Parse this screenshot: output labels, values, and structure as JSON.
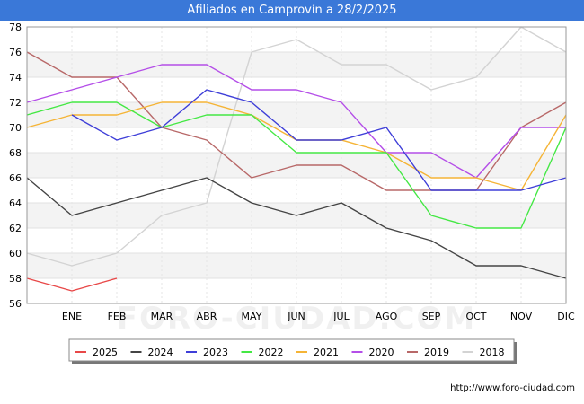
{
  "chart_data": {
    "type": "line",
    "title": "Afiliados en Camprovín a 28/2/2025",
    "xlabel": "",
    "ylabel": "",
    "categories": [
      "",
      "ENE",
      "FEB",
      "MAR",
      "ABR",
      "MAY",
      "JUN",
      "JUL",
      "AGO",
      "SEP",
      "OCT",
      "NOV",
      "DIC"
    ],
    "ylim": [
      56,
      78
    ],
    "yticks": [
      56,
      58,
      60,
      62,
      64,
      66,
      68,
      70,
      72,
      74,
      76,
      78
    ],
    "grid": "horizontal bands",
    "legend_position": "bottom",
    "series": [
      {
        "name": "2018",
        "color": "#d3d3d3",
        "values": [
          60,
          59,
          60,
          63,
          64,
          76,
          77,
          75,
          75,
          73,
          74,
          78,
          76
        ]
      },
      {
        "name": "2019",
        "color": "#b86868",
        "values": [
          76,
          74,
          74,
          70,
          69,
          66,
          67,
          67,
          65,
          65,
          65,
          70,
          72
        ]
      },
      {
        "name": "2020",
        "color": "#b44ee8",
        "values": [
          72,
          73,
          74,
          75,
          75,
          73,
          73,
          72,
          68,
          68,
          66,
          70,
          70
        ]
      },
      {
        "name": "2021",
        "color": "#f5b436",
        "values": [
          70,
          71,
          71,
          72,
          72,
          71,
          69,
          69,
          68,
          66,
          66,
          65,
          71
        ]
      },
      {
        "name": "2022",
        "color": "#44e844",
        "values": [
          71,
          72,
          72,
          70,
          71,
          71,
          68,
          68,
          68,
          63,
          62,
          62,
          70
        ]
      },
      {
        "name": "2023",
        "color": "#3e3ed8",
        "values": [
          null,
          71,
          69,
          70,
          73,
          72,
          69,
          69,
          70,
          65,
          65,
          65,
          66
        ]
      },
      {
        "name": "2024",
        "color": "#444444",
        "values": [
          66,
          63,
          64,
          65,
          66,
          64,
          63,
          64,
          62,
          61,
          59,
          59,
          58
        ]
      },
      {
        "name": "2025",
        "color": "#e84848",
        "values": [
          58,
          57,
          58,
          null,
          null,
          null,
          null,
          null,
          null,
          null,
          null,
          null,
          null
        ]
      }
    ],
    "legend_order": [
      "2025",
      "2024",
      "2023",
      "2022",
      "2021",
      "2020",
      "2019",
      "2018"
    ]
  },
  "watermark": "FORO-CIUDAD.COM",
  "footer": {
    "url": "http://www.foro-ciudad.com"
  }
}
